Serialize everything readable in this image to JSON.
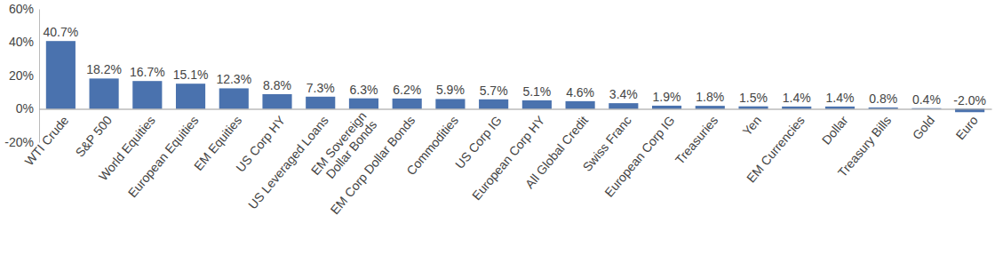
{
  "chart_data": {
    "type": "bar",
    "categories": [
      "WTI Crude",
      "S&P 500",
      "World Equities",
      "European Equities",
      "EM Equities",
      "US Corp HY",
      "US Leveraged Loans",
      "EM Sovereign\nDollar Bonds",
      "EM Corp Dollar Bonds",
      "Commodities",
      "US Corp IG",
      "European Corp HY",
      "All Global Credit",
      "Swiss Franc",
      "European Corp IG",
      "Treasuries",
      "Yen",
      "EM Currencies",
      "Dollar",
      "Treasury Bills",
      "Gold",
      "Euro"
    ],
    "values": [
      40.7,
      18.2,
      16.7,
      15.1,
      12.3,
      8.8,
      7.3,
      6.3,
      6.2,
      5.9,
      5.7,
      5.1,
      4.6,
      3.4,
      1.9,
      1.8,
      1.5,
      1.4,
      1.4,
      0.8,
      0.4,
      -2.0
    ],
    "value_labels": [
      "40.7%",
      "18.2%",
      "16.7%",
      "15.1%",
      "12.3%",
      "8.8%",
      "7.3%",
      "6.3%",
      "6.2%",
      "5.9%",
      "5.7%",
      "5.1%",
      "4.6%",
      "3.4%",
      "1.9%",
      "1.8%",
      "1.5%",
      "1.4%",
      "1.4%",
      "0.8%",
      "0.4%",
      "-2.0%"
    ],
    "color": "#4a72ae",
    "ylim": [
      -20,
      60
    ],
    "yticks": [
      {
        "value": -20,
        "label": "-20%"
      },
      {
        "value": 0,
        "label": "0%"
      },
      {
        "value": 20,
        "label": "20%"
      },
      {
        "value": 40,
        "label": "40%"
      },
      {
        "value": 60,
        "label": "60%"
      }
    ],
    "grid": false,
    "data_labels": true
  }
}
